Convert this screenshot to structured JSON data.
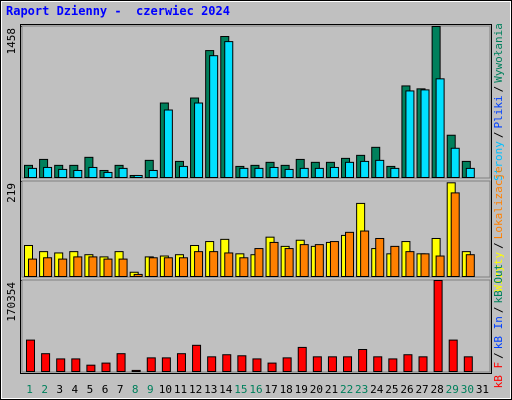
{
  "chart_data": [
    {
      "type": "bar",
      "title": "Raport Dzienny -  czerwiec 2024",
      "ylim": [
        0,
        1458
      ],
      "yticks": [
        1458
      ],
      "legend_separator": "/",
      "legend": [
        {
          "name": "Strony",
          "color": "#00c0ff"
        },
        {
          "name": "Pliki",
          "color": "#0040ff"
        },
        {
          "name": "Wywołania",
          "color": "#00805c"
        }
      ],
      "series": [
        {
          "color": "#00805c",
          "values": [
            126,
            183,
            126,
            126,
            203,
            77,
            126,
            29,
            174,
            724,
            164,
            772,
            1227,
            1362,
            116,
            126,
            155,
            126,
            183,
            155,
            155,
            193,
            222,
            299,
            116,
            888,
            860,
            1458,
            415,
            164,
            null
          ]
        },
        {
          "color": "#00e0ff",
          "values": [
            97,
            106,
            87,
            77,
            106,
            58,
            97,
            29,
            77,
            657,
            116,
            724,
            1178,
            1313,
            97,
            97,
            106,
            87,
            97,
            97,
            106,
            155,
            164,
            174,
            97,
            840,
            850,
            956,
            290,
            97,
            null
          ]
        }
      ]
    },
    {
      "type": "bar",
      "ylim": [
        0,
        219
      ],
      "yticks": [
        219
      ],
      "legend_separator": "/",
      "legend": [
        {
          "name": "Wizyty",
          "color": "#ffff00"
        },
        {
          "name": "Lokalizacje",
          "color": "#ff8000"
        }
      ],
      "series": [
        {
          "color": "#ffff00",
          "values": [
            73,
            59,
            56,
            59,
            52,
            47,
            59,
            12,
            47,
            49,
            52,
            73,
            82,
            87,
            54,
            52,
            92,
            71,
            85,
            71,
            80,
            96,
            169,
            66,
            54,
            82,
            54,
            89,
            216,
            59,
            null
          ]
        },
        {
          "color": "#ff8000",
          "values": [
            42,
            45,
            42,
            47,
            47,
            42,
            42,
            7,
            45,
            45,
            45,
            59,
            59,
            56,
            45,
            66,
            80,
            66,
            75,
            75,
            82,
            103,
            106,
            89,
            71,
            59,
            54,
            49,
            193,
            52,
            null
          ]
        }
      ]
    },
    {
      "type": "bar",
      "ylim": [
        0,
        170354
      ],
      "yticks": [
        170354
      ],
      "legend_separator": "/",
      "legend": [
        {
          "name": "kB F",
          "color": "#ff0000"
        },
        {
          "name": "kB In",
          "color": "#0040ff"
        },
        {
          "name": "kB Out",
          "color": "#00805c"
        }
      ],
      "categories": [
        "1",
        "2",
        "3",
        "4",
        "5",
        "6",
        "7",
        "8",
        "9",
        "10",
        "11",
        "12",
        "13",
        "14",
        "15",
        "16",
        "17",
        "18",
        "19",
        "20",
        "21",
        "22",
        "23",
        "24",
        "25",
        "26",
        "27",
        "28",
        "29",
        "30",
        "31"
      ],
      "category_colors": [
        "#00805c",
        "#00805c",
        "#000000",
        "#000000",
        "#000000",
        "#000000",
        "#000000",
        "#00805c",
        "#00805c",
        "#000000",
        "#000000",
        "#000000",
        "#000000",
        "#000000",
        "#00805c",
        "#00805c",
        "#000000",
        "#000000",
        "#000000",
        "#000000",
        "#000000",
        "#00805c",
        "#00805c",
        "#000000",
        "#000000",
        "#000000",
        "#000000",
        "#000000",
        "#00805c",
        "#00805c",
        "#000000"
      ],
      "series": [
        {
          "color": "#ff0000",
          "values": [
            60000,
            34850,
            25170,
            25170,
            13550,
            17420,
            34850,
            3870,
            27100,
            27100,
            34850,
            50340,
            29040,
            32910,
            30980,
            25170,
            17420,
            27100,
            46460,
            29040,
            29040,
            29040,
            42590,
            29040,
            25170,
            32910,
            29040,
            170354,
            60010,
            29040,
            null
          ]
        }
      ]
    }
  ]
}
